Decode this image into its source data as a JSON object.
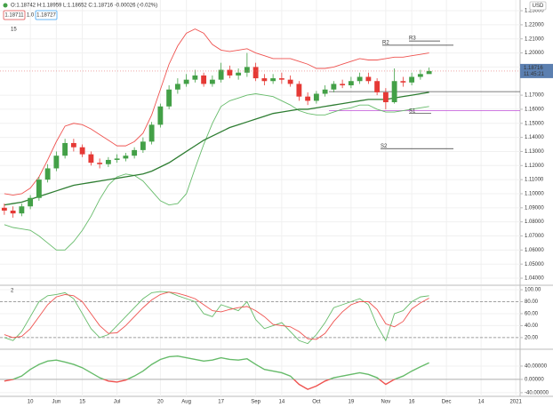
{
  "chart_data": [
    {
      "type": "candlestick",
      "symbol_bar": "O:1.18742 H:1.18959 L:1.18652 C:1.18716 -0.00026 (-0.02%)",
      "sell": "1.18711",
      "qty": "1.0",
      "buy": "1.18727",
      "indicator_label": "15",
      "currency": "USD",
      "categories": [
        null,
        null,
        null,
        "10",
        null,
        null,
        "Jun",
        null,
        null,
        "15",
        null,
        null,
        null,
        "Jul",
        null,
        null,
        null,
        null,
        "20",
        null,
        null,
        "Aug",
        null,
        null,
        null,
        "17",
        null,
        null,
        null,
        "Sep",
        null,
        null,
        "14",
        null,
        null,
        null,
        "Oct",
        null,
        null,
        null,
        "19",
        null,
        null,
        null,
        "Nov",
        null,
        null,
        "16",
        null,
        null,
        null,
        "Dec",
        null,
        null,
        null,
        "14",
        null,
        null,
        null,
        "2021"
      ],
      "open": [
        1.09,
        1.088,
        1.086,
        1.091,
        1.097,
        1.11,
        1.118,
        1.127,
        1.136,
        1.133,
        1.128,
        1.122,
        1.121,
        1.124,
        1.125,
        1.127,
        1.131,
        1.137,
        1.149,
        1.162,
        1.174,
        1.178,
        1.181,
        1.184,
        1.178,
        1.181,
        1.188,
        1.184,
        1.186,
        1.19,
        1.182,
        1.18,
        1.182,
        1.181,
        1.178,
        1.169,
        1.166,
        1.171,
        1.174,
        1.178,
        1.177,
        1.18,
        1.183,
        1.18,
        1.172,
        1.165,
        1.18,
        1.179,
        1.183,
        1.185,
        null,
        null,
        null,
        null,
        null,
        null,
        null,
        null,
        null,
        null
      ],
      "high": [
        1.093,
        1.091,
        1.093,
        1.099,
        1.112,
        1.121,
        1.13,
        1.139,
        1.139,
        1.135,
        1.13,
        1.125,
        1.126,
        1.128,
        1.129,
        1.133,
        1.14,
        1.151,
        1.164,
        1.177,
        1.182,
        1.185,
        1.188,
        1.186,
        1.184,
        1.193,
        1.191,
        1.189,
        1.2,
        1.193,
        1.185,
        1.185,
        1.186,
        1.184,
        1.18,
        1.172,
        1.173,
        1.177,
        1.18,
        1.181,
        1.183,
        1.186,
        1.186,
        1.182,
        1.175,
        1.189,
        1.183,
        1.186,
        1.188,
        1.18959,
        null,
        null,
        null,
        null,
        null,
        null,
        null,
        null,
        null,
        null
      ],
      "low": [
        1.085,
        1.083,
        1.084,
        1.089,
        1.095,
        1.108,
        1.116,
        1.125,
        1.13,
        1.126,
        1.12,
        1.118,
        1.119,
        1.122,
        1.123,
        1.125,
        1.129,
        1.135,
        1.147,
        1.16,
        1.171,
        1.176,
        1.179,
        1.176,
        1.176,
        1.179,
        1.182,
        1.181,
        1.183,
        1.18,
        1.177,
        1.178,
        1.178,
        1.176,
        1.166,
        1.163,
        1.164,
        1.169,
        1.172,
        1.175,
        1.175,
        1.178,
        1.178,
        1.17,
        1.16,
        1.164,
        1.176,
        1.177,
        1.181,
        1.18652,
        null,
        null,
        null,
        null,
        null,
        null,
        null,
        null,
        null,
        null
      ],
      "close": [
        1.088,
        1.086,
        1.091,
        1.097,
        1.11,
        1.118,
        1.127,
        1.136,
        1.133,
        1.128,
        1.122,
        1.121,
        1.124,
        1.125,
        1.127,
        1.131,
        1.137,
        1.149,
        1.162,
        1.174,
        1.178,
        1.181,
        1.184,
        1.178,
        1.181,
        1.188,
        1.184,
        1.186,
        1.19,
        1.182,
        1.18,
        1.182,
        1.181,
        1.178,
        1.169,
        1.166,
        1.171,
        1.174,
        1.178,
        1.177,
        1.18,
        1.183,
        1.18,
        1.172,
        1.165,
        1.18,
        1.179,
        1.183,
        1.185,
        1.18716,
        null,
        null,
        null,
        null,
        null,
        null,
        null,
        null,
        null,
        null
      ],
      "up_color": "#43a047",
      "down_color": "#e53935",
      "overlays": [
        {
          "color": "#ef5350",
          "values": [
            1.1,
            1.099,
            1.1,
            1.104,
            1.112,
            1.124,
            1.137,
            1.148,
            1.15,
            1.149,
            1.146,
            1.142,
            1.138,
            1.134,
            1.134,
            1.137,
            1.143,
            1.156,
            1.174,
            1.192,
            1.205,
            1.214,
            1.217,
            1.214,
            1.206,
            1.202,
            1.201,
            1.202,
            1.203,
            1.2,
            1.198,
            1.196,
            1.196,
            1.196,
            1.194,
            1.192,
            1.189,
            1.189,
            1.19,
            1.192,
            1.194,
            1.196,
            1.195,
            1.195,
            1.196,
            1.197,
            1.197,
            1.198,
            1.199,
            1.2,
            null,
            null,
            null,
            null,
            null,
            null,
            null,
            null,
            null,
            null
          ]
        },
        {
          "color": "#66bb6a",
          "values": [
            1.078,
            1.076,
            1.075,
            1.074,
            1.07,
            1.065,
            1.06,
            1.06,
            1.066,
            1.074,
            1.084,
            1.096,
            1.106,
            1.112,
            1.114,
            1.113,
            1.109,
            1.102,
            1.095,
            1.092,
            1.093,
            1.1,
            1.118,
            1.135,
            1.15,
            1.162,
            1.166,
            1.168,
            1.17,
            1.171,
            1.17,
            1.169,
            1.166,
            1.163,
            1.159,
            1.157,
            1.156,
            1.156,
            1.158,
            1.16,
            1.161,
            1.163,
            1.163,
            1.16,
            1.158,
            1.158,
            1.159,
            1.16,
            1.161,
            1.162,
            null,
            null,
            null,
            null,
            null,
            null,
            null,
            null,
            null,
            null
          ]
        },
        {
          "color": "#2e7d32",
          "values": [
            1.092,
            1.093,
            1.094,
            1.096,
            1.098,
            1.1,
            1.102,
            1.104,
            1.106,
            1.107,
            1.108,
            1.109,
            1.11,
            1.111,
            1.112,
            1.113,
            1.114,
            1.116,
            1.119,
            1.122,
            1.126,
            1.13,
            1.134,
            1.138,
            1.141,
            1.144,
            1.147,
            1.149,
            1.151,
            1.153,
            1.155,
            1.157,
            1.158,
            1.159,
            1.16,
            1.16,
            1.161,
            1.162,
            1.163,
            1.164,
            1.165,
            1.166,
            1.167,
            1.167,
            1.167,
            1.168,
            1.169,
            1.17,
            1.171,
            1.172,
            null,
            null,
            null,
            null,
            null,
            null,
            null,
            null,
            null,
            null
          ]
        }
      ],
      "levels": [
        {
          "label": "R3",
          "value": 1.2085
        },
        {
          "label": "R2",
          "value": 1.2055
        },
        {
          "label": "S1",
          "value": 1.157
        },
        {
          "label": "S2",
          "value": 1.132
        }
      ],
      "hlines": [
        {
          "value": 1.1725,
          "color": "#555555"
        },
        {
          "value": 1.159,
          "color": "#c04fd8"
        }
      ],
      "last_price": 1.18716,
      "countdown": "11:45:21",
      "ylim": [
        1.0356,
        1.2376
      ],
      "yticks": [
        {
          "value": 1.23,
          "label": "1.23000"
        },
        {
          "value": 1.22,
          "label": "1.22000"
        },
        {
          "value": 1.21,
          "label": "1.21000"
        },
        {
          "value": 1.2,
          "label": "1.20000"
        },
        {
          "value": 1.19,
          "label": "1.19000"
        },
        {
          "value": 1.17,
          "label": "1.17000"
        },
        {
          "value": 1.16,
          "label": "1.16000"
        },
        {
          "value": 1.15,
          "label": "1.15000"
        },
        {
          "value": 1.14,
          "label": "1.14000"
        },
        {
          "value": 1.13,
          "label": "1.13000"
        },
        {
          "value": 1.12,
          "label": "1.12000"
        },
        {
          "value": 1.11,
          "label": "1.11000"
        },
        {
          "value": 1.1,
          "label": "1.10000"
        },
        {
          "value": 1.09,
          "label": "1.09000"
        },
        {
          "value": 1.08,
          "label": "1.08000"
        },
        {
          "value": 1.07,
          "label": "1.07000"
        },
        {
          "value": 1.06,
          "label": "1.06000"
        },
        {
          "value": 1.05,
          "label": "1.05000"
        },
        {
          "value": 1.04,
          "label": "1.04000"
        }
      ],
      "grid": true
    },
    {
      "type": "line",
      "indicator_label": "2",
      "series": [
        {
          "color": "#66bb6a",
          "values": [
            20,
            15,
            30,
            55,
            80,
            90,
            92,
            95,
            85,
            60,
            35,
            20,
            25,
            40,
            55,
            70,
            85,
            95,
            97,
            96,
            90,
            85,
            80,
            60,
            55,
            75,
            70,
            65,
            80,
            50,
            35,
            40,
            45,
            30,
            15,
            10,
            25,
            45,
            70,
            75,
            80,
            85,
            75,
            40,
            15,
            60,
            65,
            80,
            88,
            90,
            null,
            null,
            null,
            null,
            null,
            null,
            null,
            null,
            null,
            null
          ]
        },
        {
          "color": "#ef5350",
          "values": [
            25,
            20,
            22,
            35,
            55,
            75,
            88,
            92,
            90,
            80,
            60,
            40,
            27,
            28,
            40,
            55,
            70,
            83,
            92,
            96,
            94,
            90,
            85,
            75,
            65,
            63,
            67,
            70,
            72,
            65,
            55,
            42,
            40,
            38,
            30,
            18,
            17,
            27,
            47,
            63,
            75,
            80,
            80,
            67,
            43,
            38,
            47,
            68,
            78,
            86,
            null,
            null,
            null,
            null,
            null,
            null,
            null,
            null,
            null,
            null
          ]
        }
      ],
      "hlines": [
        80,
        20
      ],
      "ylim": [
        2,
        106
      ],
      "yticks": [
        {
          "value": 100,
          "label": "100.00"
        },
        {
          "value": 80,
          "label": "80.00"
        },
        {
          "value": 60,
          "label": "60.00"
        },
        {
          "value": 40,
          "label": "40.00"
        },
        {
          "value": 20,
          "label": "20.00"
        }
      ],
      "grid": true
    },
    {
      "type": "line",
      "series": [
        {
          "color": "#66bb6a",
          "negative_color": "#ef5350",
          "values": [
            -5,
            0,
            10,
            30,
            45,
            55,
            58,
            52,
            45,
            35,
            20,
            5,
            -5,
            -8,
            -2,
            10,
            25,
            45,
            60,
            68,
            70,
            65,
            60,
            55,
            58,
            65,
            60,
            58,
            62,
            45,
            30,
            25,
            20,
            10,
            -15,
            -30,
            -20,
            -5,
            5,
            10,
            15,
            20,
            15,
            5,
            -15,
            0,
            10,
            25,
            38,
            50,
            null,
            null,
            null,
            null,
            null,
            null,
            null,
            null,
            null,
            null
          ]
        }
      ],
      "hlines": [
        0
      ],
      "ylim": [
        -51,
        88
      ],
      "yticks": [
        {
          "value": 40,
          "label": "40.00000"
        },
        {
          "value": 0,
          "label": "0.00000"
        },
        {
          "value": -40,
          "label": "-40.00000"
        }
      ],
      "grid": true
    }
  ]
}
